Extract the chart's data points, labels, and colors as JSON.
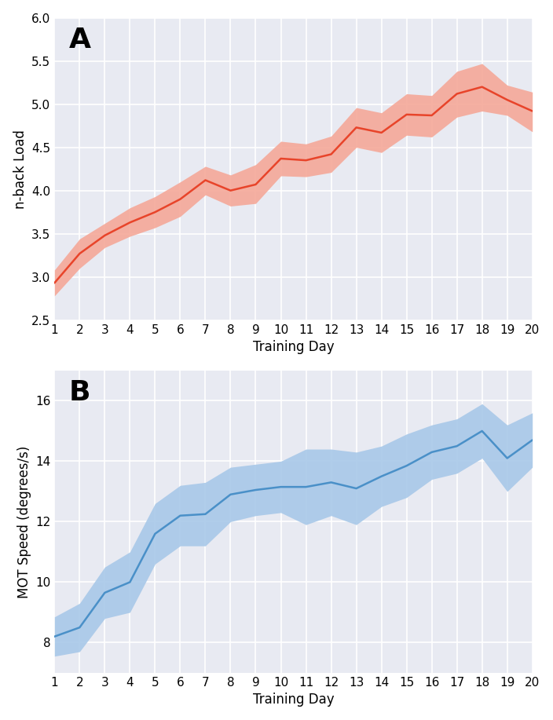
{
  "days": [
    1,
    2,
    3,
    4,
    5,
    6,
    7,
    8,
    9,
    10,
    11,
    12,
    13,
    14,
    15,
    16,
    17,
    18,
    19,
    20
  ],
  "nback_mean": [
    2.93,
    3.27,
    3.48,
    3.63,
    3.75,
    3.9,
    4.12,
    4.0,
    4.07,
    4.37,
    4.35,
    4.42,
    4.73,
    4.67,
    4.88,
    4.87,
    5.12,
    5.2,
    5.05,
    4.92
  ],
  "nback_upper": [
    3.08,
    3.44,
    3.62,
    3.8,
    3.93,
    4.1,
    4.28,
    4.18,
    4.3,
    4.57,
    4.54,
    4.63,
    4.96,
    4.9,
    5.12,
    5.1,
    5.38,
    5.47,
    5.22,
    5.14
  ],
  "nback_lower": [
    2.78,
    3.1,
    3.34,
    3.47,
    3.57,
    3.7,
    3.95,
    3.82,
    3.85,
    4.17,
    4.16,
    4.21,
    4.5,
    4.44,
    4.64,
    4.62,
    4.85,
    4.92,
    4.87,
    4.68
  ],
  "mot_mean": [
    8.2,
    8.5,
    9.65,
    10.0,
    11.6,
    12.2,
    12.25,
    12.9,
    13.05,
    13.15,
    13.15,
    13.3,
    13.1,
    13.5,
    13.85,
    14.3,
    14.5,
    15.0,
    14.1,
    14.7
  ],
  "mot_upper": [
    8.85,
    9.3,
    10.5,
    11.0,
    12.6,
    13.2,
    13.3,
    13.8,
    13.9,
    14.0,
    14.4,
    14.4,
    14.3,
    14.5,
    14.9,
    15.2,
    15.4,
    15.9,
    15.2,
    15.6
  ],
  "mot_lower": [
    7.55,
    7.7,
    8.8,
    9.0,
    10.6,
    11.2,
    11.2,
    12.0,
    12.2,
    12.3,
    11.9,
    12.2,
    11.9,
    12.5,
    12.8,
    13.4,
    13.6,
    14.1,
    13.0,
    13.8
  ],
  "nback_line_color": "#e8442a",
  "nback_fill_color": "#f5a898",
  "mot_line_color": "#4a90c8",
  "mot_fill_color": "#a8c8e8",
  "bg_color": "#e8eaf2",
  "grid_color": "#ffffff",
  "fig_bg": "#ffffff",
  "panel_A_label": "A",
  "panel_B_label": "B",
  "xlabel": "Training Day",
  "ylabel_A": "n-back Load",
  "ylabel_B": "MOT Speed (degrees/s)",
  "ylim_A": [
    2.5,
    6.0
  ],
  "yticks_A": [
    2.5,
    3.0,
    3.5,
    4.0,
    4.5,
    5.0,
    5.5,
    6.0
  ],
  "ylim_B": [
    7.0,
    17.0
  ],
  "yticks_B": [
    8,
    10,
    12,
    14,
    16
  ],
  "xlim": [
    1,
    20
  ],
  "xticks": [
    1,
    2,
    3,
    4,
    5,
    6,
    7,
    8,
    9,
    10,
    11,
    12,
    13,
    14,
    15,
    16,
    17,
    18,
    19,
    20
  ]
}
